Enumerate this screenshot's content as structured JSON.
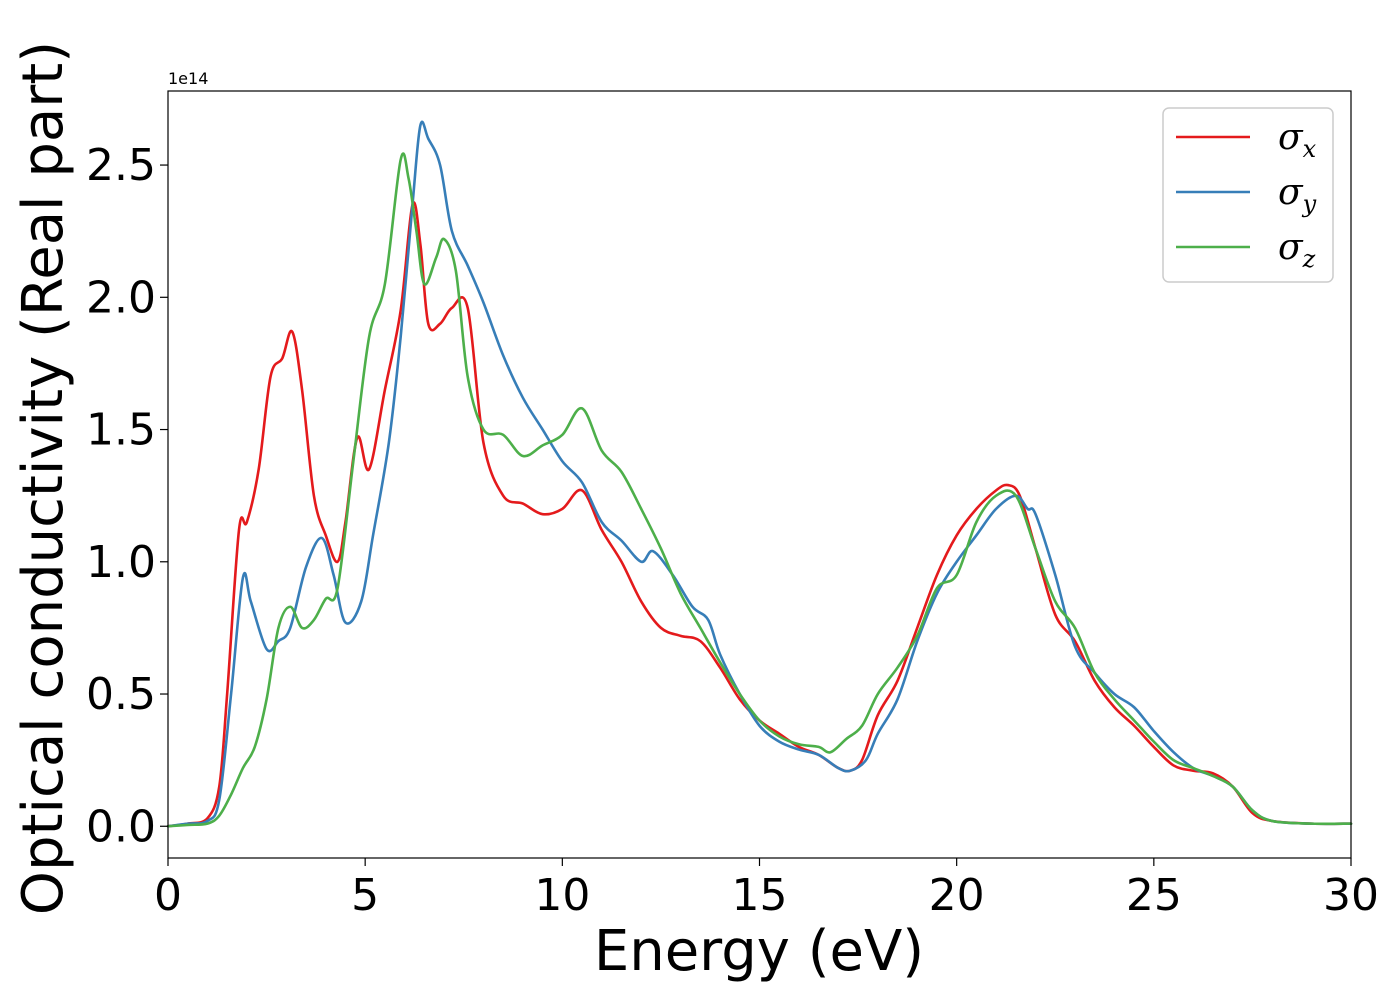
{
  "chart_data": {
    "type": "line",
    "xlabel": "Energy (eV)",
    "ylabel": "Optical conductivity (Real part)",
    "y_offset_label": "1e14",
    "xlim": [
      0,
      30
    ],
    "ylim": [
      -0.12,
      2.78
    ],
    "xticks": [
      0,
      5,
      10,
      15,
      20,
      25,
      30
    ],
    "xtick_labels": [
      "0",
      "5",
      "10",
      "15",
      "20",
      "25",
      "30"
    ],
    "yticks": [
      0.0,
      0.5,
      1.0,
      1.5,
      2.0,
      2.5
    ],
    "ytick_labels": [
      "0.0",
      "0.5",
      "1.0",
      "1.5",
      "2.0",
      "2.5"
    ],
    "grid": false,
    "legend_position": "top-right",
    "series": [
      {
        "name": "σx",
        "legend_symbol": "σ",
        "legend_sub": "x",
        "color": "#e41a1c",
        "x": [
          0,
          0.5,
          1.0,
          1.3,
          1.5,
          1.8,
          2.0,
          2.3,
          2.6,
          2.9,
          3.15,
          3.4,
          3.7,
          4.0,
          4.3,
          4.5,
          4.8,
          5.1,
          5.5,
          5.9,
          6.2,
          6.4,
          6.6,
          6.9,
          7.2,
          7.6,
          8.0,
          8.5,
          9.0,
          9.5,
          10.0,
          10.5,
          11.0,
          11.5,
          12.0,
          12.5,
          13.0,
          13.5,
          14.0,
          14.5,
          15.0,
          15.5,
          16.0,
          16.5,
          17.0,
          17.3,
          17.6,
          18.0,
          18.5,
          19.0,
          19.5,
          20.0,
          20.5,
          21.0,
          21.3,
          21.6,
          22.0,
          22.5,
          23.0,
          23.5,
          24.0,
          24.5,
          25.0,
          25.5,
          26.0,
          26.5,
          27.0,
          27.5,
          28.0,
          29.0,
          30.0
        ],
        "y": [
          0.0,
          0.01,
          0.03,
          0.15,
          0.5,
          1.12,
          1.15,
          1.35,
          1.7,
          1.77,
          1.87,
          1.65,
          1.25,
          1.1,
          1.0,
          1.15,
          1.47,
          1.35,
          1.65,
          1.95,
          2.35,
          2.2,
          1.9,
          1.9,
          1.96,
          1.96,
          1.45,
          1.25,
          1.22,
          1.18,
          1.2,
          1.27,
          1.12,
          1.0,
          0.85,
          0.75,
          0.72,
          0.7,
          0.6,
          0.48,
          0.4,
          0.35,
          0.3,
          0.27,
          0.22,
          0.21,
          0.25,
          0.42,
          0.55,
          0.75,
          0.95,
          1.1,
          1.2,
          1.27,
          1.29,
          1.25,
          1.05,
          0.8,
          0.7,
          0.55,
          0.45,
          0.38,
          0.3,
          0.23,
          0.21,
          0.2,
          0.15,
          0.05,
          0.02,
          0.01,
          0.01
        ]
      },
      {
        "name": "σy",
        "legend_symbol": "σ",
        "legend_sub": "y",
        "color": "#377eb8",
        "x": [
          0,
          0.5,
          1.0,
          1.3,
          1.6,
          1.9,
          2.1,
          2.5,
          2.8,
          3.1,
          3.5,
          3.9,
          4.2,
          4.5,
          4.9,
          5.2,
          5.6,
          5.9,
          6.2,
          6.4,
          6.6,
          6.9,
          7.2,
          7.6,
          8.0,
          8.5,
          9.0,
          9.5,
          10.0,
          10.5,
          11.0,
          11.5,
          12.0,
          12.3,
          12.8,
          13.3,
          13.7,
          14.0,
          14.5,
          15.0,
          15.5,
          16.0,
          16.5,
          17.0,
          17.3,
          17.7,
          18.0,
          18.5,
          19.0,
          19.5,
          20.0,
          20.5,
          21.0,
          21.5,
          21.8,
          22.0,
          22.5,
          23.0,
          23.5,
          24.0,
          24.5,
          25.0,
          25.5,
          26.0,
          26.5,
          27.0,
          27.5,
          28.0,
          29.0,
          30.0
        ],
        "y": [
          0.0,
          0.01,
          0.02,
          0.1,
          0.5,
          0.94,
          0.85,
          0.67,
          0.7,
          0.75,
          0.98,
          1.09,
          0.95,
          0.77,
          0.85,
          1.1,
          1.45,
          1.85,
          2.35,
          2.65,
          2.6,
          2.5,
          2.25,
          2.12,
          1.98,
          1.78,
          1.62,
          1.5,
          1.38,
          1.3,
          1.15,
          1.08,
          1.0,
          1.04,
          0.95,
          0.83,
          0.78,
          0.65,
          0.5,
          0.38,
          0.32,
          0.29,
          0.27,
          0.22,
          0.21,
          0.25,
          0.35,
          0.48,
          0.7,
          0.88,
          1.0,
          1.1,
          1.2,
          1.25,
          1.2,
          1.18,
          0.95,
          0.68,
          0.58,
          0.5,
          0.45,
          0.36,
          0.28,
          0.22,
          0.19,
          0.15,
          0.06,
          0.02,
          0.01,
          0.01
        ]
      },
      {
        "name": "σz",
        "legend_symbol": "σ",
        "legend_sub": "z",
        "color": "#4daf4a",
        "x": [
          0,
          0.5,
          1.0,
          1.3,
          1.6,
          1.9,
          2.2,
          2.5,
          2.8,
          3.1,
          3.4,
          3.7,
          4.0,
          4.3,
          4.7,
          5.1,
          5.5,
          5.9,
          6.1,
          6.3,
          6.5,
          6.8,
          7.0,
          7.3,
          7.6,
          8.0,
          8.5,
          9.0,
          9.5,
          10.0,
          10.5,
          11.0,
          11.5,
          12.0,
          12.5,
          13.0,
          13.5,
          14.0,
          14.5,
          15.0,
          15.5,
          16.0,
          16.5,
          16.8,
          17.2,
          17.6,
          18.0,
          18.5,
          19.0,
          19.5,
          20.0,
          20.5,
          21.0,
          21.5,
          22.0,
          22.5,
          23.0,
          23.5,
          24.0,
          24.5,
          25.0,
          25.5,
          26.0,
          26.5,
          27.0,
          27.5,
          28.0,
          29.0,
          30.0
        ],
        "y": [
          0.0,
          0.005,
          0.01,
          0.04,
          0.12,
          0.22,
          0.3,
          0.48,
          0.75,
          0.83,
          0.75,
          0.78,
          0.86,
          0.9,
          1.38,
          1.85,
          2.05,
          2.52,
          2.45,
          2.25,
          2.05,
          2.15,
          2.22,
          2.1,
          1.7,
          1.5,
          1.48,
          1.4,
          1.44,
          1.48,
          1.58,
          1.42,
          1.34,
          1.2,
          1.05,
          0.88,
          0.75,
          0.62,
          0.5,
          0.4,
          0.34,
          0.31,
          0.3,
          0.28,
          0.33,
          0.38,
          0.5,
          0.6,
          0.72,
          0.9,
          0.95,
          1.15,
          1.25,
          1.25,
          1.05,
          0.85,
          0.75,
          0.58,
          0.48,
          0.4,
          0.32,
          0.25,
          0.22,
          0.19,
          0.15,
          0.06,
          0.02,
          0.01,
          0.01
        ]
      }
    ]
  }
}
